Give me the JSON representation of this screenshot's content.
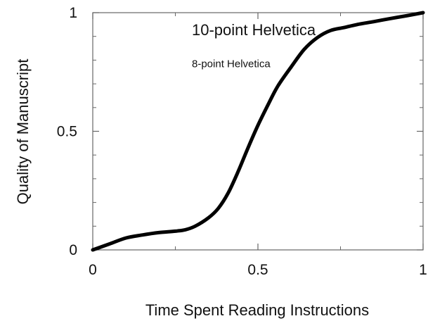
{
  "colors": {
    "curve": "#000000",
    "axis": "#666666",
    "text": "#111111",
    "background": "#ffffff"
  },
  "chart_data": {
    "type": "line",
    "title": "",
    "xlabel": "Time Spent Reading Instructions",
    "ylabel": "Quality of Manuscript",
    "xlim": [
      0,
      1
    ],
    "ylim": [
      0,
      1
    ],
    "grid": false,
    "x_major_ticks": [
      0,
      0.5,
      1
    ],
    "x_tick_labels": [
      "0",
      "0.5",
      "1"
    ],
    "x_minor_ticks": [
      0.25,
      0.75
    ],
    "y_major_ticks": [
      0,
      0.5,
      1
    ],
    "y_tick_labels": [
      "0",
      "0.5",
      "1"
    ],
    "y_minor_ticks": [
      0.1,
      0.2,
      0.3,
      0.4,
      0.6,
      0.7,
      0.8,
      0.9
    ],
    "annotations": [
      {
        "text": "10-point Helvetica",
        "x": 0.3,
        "y": 0.905
      },
      {
        "text": "8-point Helvetica",
        "x": 0.3,
        "y": 0.77
      }
    ],
    "series": [
      {
        "x": [
          0,
          0.05,
          0.1,
          0.15,
          0.2,
          0.25,
          0.28,
          0.31,
          0.35,
          0.38,
          0.41,
          0.44,
          0.47,
          0.5,
          0.53,
          0.56,
          0.6,
          0.64,
          0.68,
          0.72,
          0.76,
          0.8,
          0.85,
          0.9,
          0.95,
          1.0
        ],
        "y": [
          0,
          0.025,
          0.05,
          0.063,
          0.073,
          0.079,
          0.085,
          0.1,
          0.135,
          0.175,
          0.24,
          0.33,
          0.43,
          0.525,
          0.61,
          0.69,
          0.77,
          0.845,
          0.895,
          0.925,
          0.937,
          0.95,
          0.962,
          0.975,
          0.987,
          1.0
        ]
      }
    ]
  }
}
